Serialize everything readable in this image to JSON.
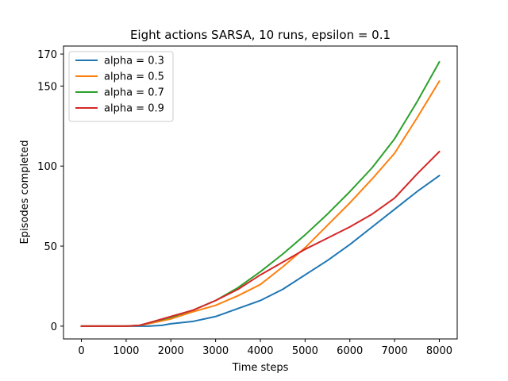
{
  "chart_data": {
    "type": "line",
    "title": "Eight actions SARSA, 10 runs, epsilon = 0.1",
    "xlabel": "Time steps",
    "ylabel": "Episodes completed",
    "xlim": [
      -400,
      8400
    ],
    "ylim": [
      -8,
      175
    ],
    "xticks": [
      0,
      1000,
      2000,
      3000,
      4000,
      5000,
      6000,
      7000,
      8000
    ],
    "yticks": [
      0,
      50,
      100,
      150,
      170
    ],
    "grid": false,
    "legend_position": "top-left",
    "series": [
      {
        "name": "alpha = 0.3",
        "color": "#1f77b4",
        "x": [
          0,
          500,
          1000,
          1500,
          1800,
          2000,
          2500,
          3000,
          3500,
          4000,
          4500,
          5000,
          5500,
          6000,
          6500,
          7000,
          7500,
          8000
        ],
        "y": [
          0,
          0,
          0,
          0,
          0.5,
          1.5,
          3,
          6,
          11,
          16,
          23,
          32,
          41,
          51,
          62,
          73,
          84,
          94
        ]
      },
      {
        "name": "alpha = 0.5",
        "color": "#ff7f0e",
        "x": [
          0,
          500,
          1000,
          1300,
          1500,
          2000,
          2500,
          3000,
          3500,
          4000,
          4500,
          5000,
          5500,
          6000,
          6500,
          7000,
          7500,
          8000
        ],
        "y": [
          0,
          0,
          0,
          0.5,
          1.5,
          4.5,
          9,
          13,
          19,
          26,
          37,
          49,
          63,
          77,
          92,
          108,
          130,
          153
        ]
      },
      {
        "name": "alpha = 0.7",
        "color": "#2ca02c",
        "x": [
          0,
          500,
          1000,
          1300,
          1500,
          2000,
          2500,
          3000,
          3500,
          4000,
          4500,
          5000,
          5500,
          6000,
          6500,
          7000,
          7500,
          8000
        ],
        "y": [
          0,
          0,
          0,
          0.5,
          2,
          5.5,
          10,
          16,
          24,
          34,
          45,
          57,
          70,
          84,
          99,
          117,
          140,
          165
        ]
      },
      {
        "name": "alpha = 0.9",
        "color": "#d62728",
        "x": [
          0,
          500,
          1000,
          1300,
          1500,
          2000,
          2500,
          3000,
          3500,
          4000,
          4500,
          5000,
          5500,
          6000,
          6500,
          7000,
          7500,
          8000
        ],
        "y": [
          0,
          0,
          0,
          0.5,
          2,
          6,
          10,
          16,
          23,
          32,
          40,
          48,
          55,
          62,
          70,
          80,
          95,
          109
        ]
      }
    ]
  }
}
